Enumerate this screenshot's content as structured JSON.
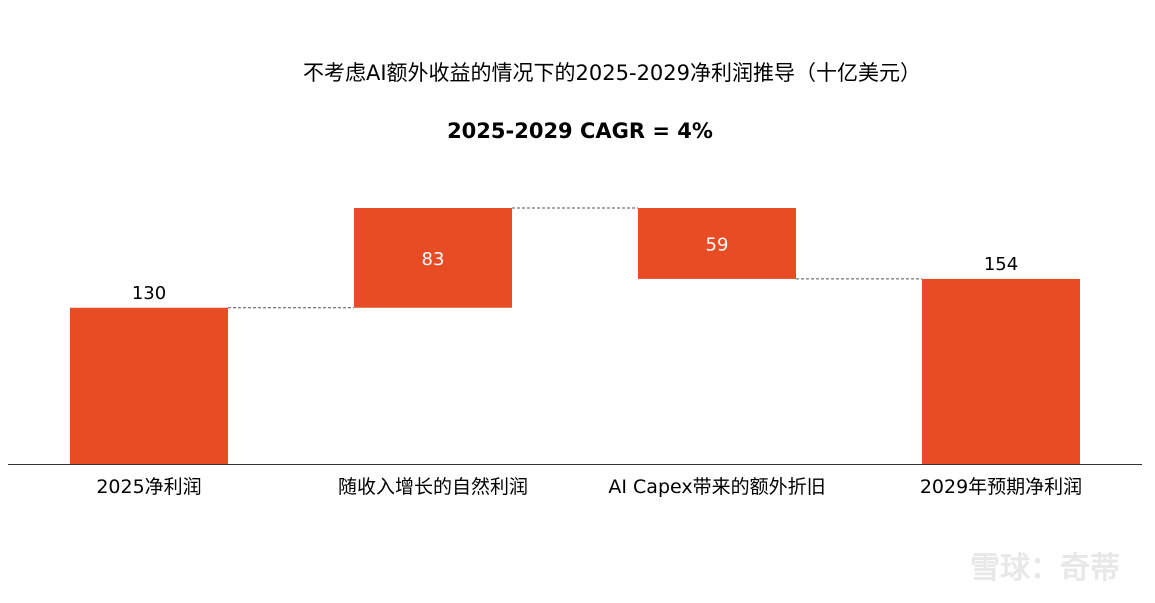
{
  "chart_data": {
    "type": "bar",
    "subtype": "waterfall",
    "title": "不考虑AI额外收益的情况下的2025-2029净利润推导（十亿美元）",
    "subtitle": "2025-2029 CAGR = 4%",
    "categories": [
      "2025净利润",
      "随收入增长的自然利润",
      "AI Capex带来的额外折旧",
      "2029年预期净利润"
    ],
    "values": [
      130,
      83,
      -59,
      154
    ],
    "data_labels": [
      "130",
      "83",
      "59",
      "154"
    ],
    "measure": [
      "total",
      "relative",
      "relative",
      "total"
    ],
    "ylim": [
      0,
      213
    ],
    "grid": false,
    "legend": "none",
    "bar_color": "#E84C24"
  },
  "watermark": "雪球：奇蒂"
}
